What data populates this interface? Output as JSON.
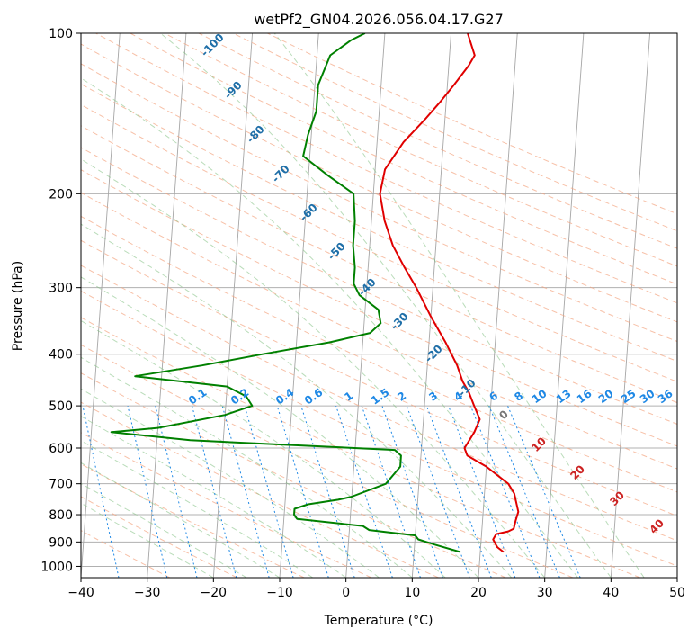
{
  "chart_data": {
    "type": "line",
    "title": "wetPf2_GN04.2026.056.04.17.G27",
    "xlabel": "Temperature (°C)",
    "ylabel": "Pressure (hPa)",
    "xlim": [
      -40,
      50
    ],
    "ylim": [
      1050,
      100
    ],
    "y_scale": "log",
    "x_ticks": [
      -40,
      -30,
      -20,
      -10,
      0,
      10,
      20,
      30,
      40,
      50
    ],
    "y_ticks": [
      100,
      200,
      300,
      400,
      500,
      600,
      700,
      800,
      900,
      1000
    ],
    "grid": true,
    "series": [
      {
        "color": "#e00000",
        "points": [
          [
            23.5,
            940
          ],
          [
            22.5,
            920
          ],
          [
            21.8,
            890
          ],
          [
            22.2,
            870
          ],
          [
            24.0,
            860
          ],
          [
            24.8,
            850
          ],
          [
            25.0,
            820
          ],
          [
            25.3,
            790
          ],
          [
            24.5,
            730
          ],
          [
            23.5,
            700
          ],
          [
            20,
            650
          ],
          [
            17,
            620
          ],
          [
            16.5,
            600
          ],
          [
            17.8,
            560
          ],
          [
            18.5,
            530
          ],
          [
            17.5,
            500
          ],
          [
            16.5,
            470
          ],
          [
            15.5,
            450
          ],
          [
            14.5,
            420
          ],
          [
            12.5,
            380
          ],
          [
            10,
            340
          ],
          [
            7.5,
            300
          ],
          [
            5.5,
            275
          ],
          [
            3.5,
            250
          ],
          [
            2,
            225
          ],
          [
            1,
            200
          ],
          [
            1.5,
            180
          ],
          [
            4,
            160
          ],
          [
            7,
            145
          ],
          [
            9,
            135
          ],
          [
            11,
            125
          ],
          [
            13,
            115
          ],
          [
            13.8,
            110
          ],
          [
            12.5,
            100
          ]
        ]
      },
      {
        "color": "#008000",
        "points": [
          [
            17,
            940
          ],
          [
            13,
            910
          ],
          [
            10.5,
            890
          ],
          [
            10,
            875
          ],
          [
            3,
            855
          ],
          [
            2,
            840
          ],
          [
            -8,
            815
          ],
          [
            -8.5,
            800
          ],
          [
            -8.5,
            780
          ],
          [
            -6.5,
            765
          ],
          [
            -2,
            750
          ],
          [
            0,
            740
          ],
          [
            5,
            700
          ],
          [
            7,
            650
          ],
          [
            7,
            620
          ],
          [
            6,
            605
          ],
          [
            -25,
            580
          ],
          [
            -37,
            560
          ],
          [
            -30,
            550
          ],
          [
            -20,
            520
          ],
          [
            -16,
            500
          ],
          [
            -17,
            480
          ],
          [
            -20,
            460
          ],
          [
            -34,
            440
          ],
          [
            -24,
            420
          ],
          [
            -15,
            400
          ],
          [
            -5,
            380
          ],
          [
            1,
            365
          ],
          [
            2.5,
            350
          ],
          [
            2,
            330
          ],
          [
            -1,
            310
          ],
          [
            -2,
            295
          ],
          [
            -2,
            275
          ],
          [
            -2.5,
            250
          ],
          [
            -2.5,
            225
          ],
          [
            -3,
            200
          ],
          [
            -7,
            185
          ],
          [
            -11,
            170
          ],
          [
            -10.5,
            155
          ],
          [
            -9.5,
            140
          ],
          [
            -9.5,
            125
          ],
          [
            -8,
            110
          ],
          [
            -5,
            103
          ],
          [
            -3,
            100
          ]
        ]
      }
    ],
    "dry_adiabat_labels": [
      "-100",
      "-90",
      "-80",
      "-70",
      "-60",
      "-50",
      "-40",
      "-30",
      "-20",
      "-10",
      "0",
      "10",
      "20",
      "30",
      "40"
    ],
    "mixing_ratio_labels": [
      "0.1",
      "0.2",
      "0.4",
      "0.6",
      "1",
      "1.5",
      "2",
      "3",
      "4",
      "6",
      "8",
      "10",
      "13",
      "16",
      "20",
      "25",
      "30",
      "36"
    ],
    "colors": {
      "temperature": "#e00000",
      "dewpoint": "#008000",
      "dry_adiabat_cold": "#1f6fa8",
      "dry_adiabat_warm": "#cc2222",
      "mixing_ratio": "#1e88e5",
      "moist_adiabat": "#7fbf7f",
      "isotherm": "#999999"
    }
  }
}
